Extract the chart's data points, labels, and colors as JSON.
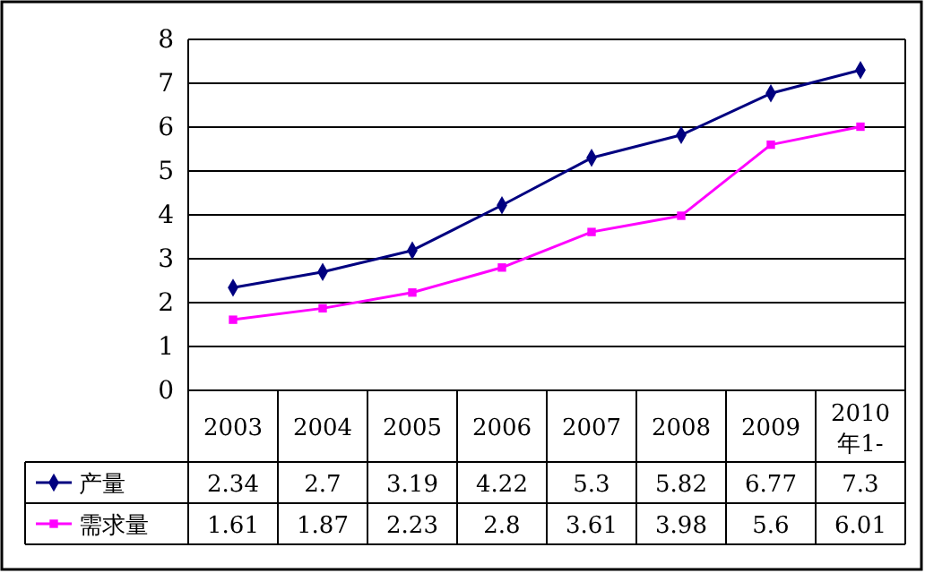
{
  "chart_data": {
    "type": "line",
    "categories": [
      "2003",
      "2004",
      "2005",
      "2006",
      "2007",
      "2008",
      "2009",
      "2010年1-"
    ],
    "series": [
      {
        "name": "产量",
        "color": "#000080",
        "marker": "diamond",
        "values": [
          2.34,
          2.7,
          3.19,
          4.22,
          5.3,
          5.82,
          6.77,
          7.3
        ]
      },
      {
        "name": "需求量",
        "color": "#ff00ff",
        "marker": "square",
        "values": [
          1.61,
          1.87,
          2.23,
          2.8,
          3.61,
          3.98,
          5.6,
          6.01
        ]
      }
    ],
    "ylim": [
      0,
      8
    ],
    "yticks": [
      0,
      1,
      2,
      3,
      4,
      5,
      6,
      7,
      8
    ],
    "grid": "y",
    "data_labels": true,
    "legend": "bottom"
  }
}
